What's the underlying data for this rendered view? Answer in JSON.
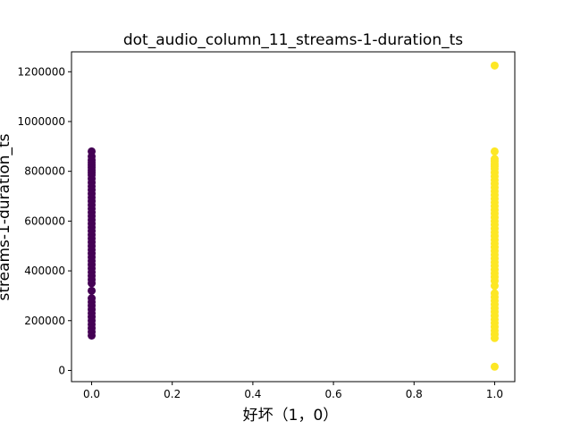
{
  "chart_data": {
    "type": "scatter",
    "title": "dot_audio_column_11_streams-1-duration_ts",
    "xlabel": "好坏（1，0）",
    "ylabel": "streams-1-duration_ts",
    "xlim": [
      -0.05,
      1.05
    ],
    "ylim": [
      -45000,
      1280000
    ],
    "xticks": [
      "0.0",
      "0.2",
      "0.4",
      "0.6",
      "0.8",
      "1.0"
    ],
    "yticks": [
      "0",
      "200000",
      "400000",
      "600000",
      "800000",
      "1000000",
      "1200000"
    ],
    "grid": false,
    "legend": "none",
    "series": [
      {
        "class": 0,
        "color": "#440154",
        "x": [
          0,
          0,
          0,
          0,
          0,
          0,
          0,
          0,
          0,
          0,
          0,
          0,
          0,
          0,
          0,
          0,
          0,
          0,
          0,
          0,
          0,
          0,
          0,
          0,
          0,
          0,
          0,
          0,
          0,
          0,
          0,
          0,
          0,
          0,
          0,
          0,
          0,
          0,
          0,
          0,
          0,
          0,
          0,
          0,
          0,
          0,
          0,
          0,
          0,
          0
        ],
        "y": [
          140000,
          155000,
          170000,
          185000,
          200000,
          215000,
          230000,
          245000,
          260000,
          275000,
          290000,
          320000,
          350000,
          365000,
          380000,
          395000,
          410000,
          425000,
          440000,
          455000,
          470000,
          485000,
          500000,
          515000,
          530000,
          545000,
          560000,
          575000,
          590000,
          605000,
          620000,
          635000,
          650000,
          665000,
          680000,
          695000,
          710000,
          725000,
          740000,
          755000,
          770000,
          785000,
          795000,
          805000,
          815000,
          825000,
          835000,
          845000,
          860000,
          880000
        ]
      },
      {
        "class": 1,
        "color": "#fde725",
        "x": [
          1,
          1,
          1,
          1,
          1,
          1,
          1,
          1,
          1,
          1,
          1,
          1,
          1,
          1,
          1,
          1,
          1,
          1,
          1,
          1,
          1,
          1,
          1,
          1,
          1,
          1,
          1,
          1,
          1,
          1,
          1,
          1,
          1,
          1,
          1,
          1,
          1,
          1,
          1,
          1,
          1,
          1,
          1,
          1,
          1,
          1,
          1,
          1,
          1,
          1,
          1,
          1
        ],
        "y": [
          15000,
          130000,
          145000,
          160000,
          175000,
          190000,
          205000,
          220000,
          235000,
          250000,
          265000,
          280000,
          295000,
          310000,
          340000,
          360000,
          375000,
          390000,
          405000,
          420000,
          435000,
          450000,
          465000,
          480000,
          495000,
          510000,
          525000,
          540000,
          555000,
          570000,
          585000,
          600000,
          615000,
          630000,
          645000,
          660000,
          675000,
          690000,
          705000,
          720000,
          735000,
          750000,
          765000,
          780000,
          795000,
          810000,
          820000,
          830000,
          840000,
          850000,
          880000,
          1225000
        ]
      }
    ]
  }
}
